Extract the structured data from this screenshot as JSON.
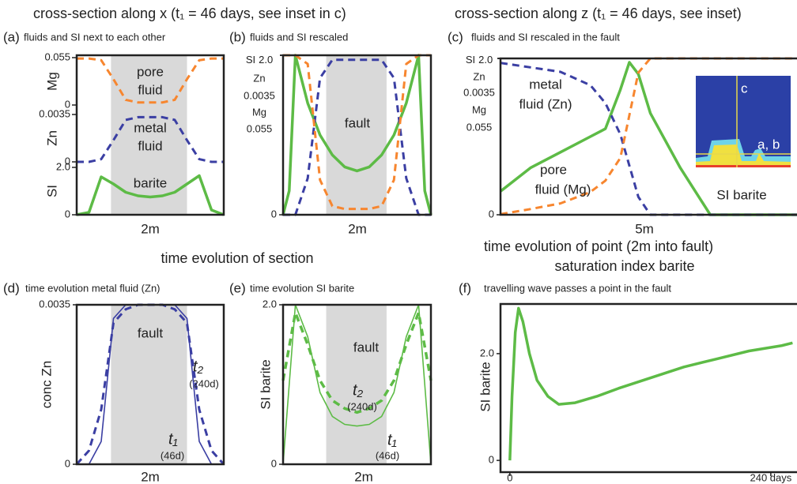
{
  "headings": {
    "top_x": "cross-section along x (t₁ = 46 days, see inset in c)",
    "top_z": "cross-section along z (t₁ = 46 days, see inset)",
    "section": "time evolution of section",
    "point": "time evolution of point (2m into fault)",
    "point_sub": "saturation index barite"
  },
  "chart_data": [
    {
      "type": "line",
      "panel": "(a)",
      "title": "fluids and SI next to each other",
      "xlabel": "2m",
      "xlim": [
        0,
        12
      ],
      "x": [
        0,
        1,
        2,
        3,
        4,
        5,
        6,
        7,
        8,
        9,
        10,
        11,
        12
      ],
      "fault": [
        2.8,
        9.0
      ],
      "bands": [
        {
          "ylabel": "Mg",
          "ylim": [
            0,
            0.055
          ],
          "yticks": [
            0,
            0.055
          ]
        },
        {
          "ylabel": "Zn",
          "ylim": [
            0,
            0.0035
          ],
          "yticks": [
            0,
            0.0035
          ]
        },
        {
          "ylabel": "SI",
          "ylim": [
            0,
            2
          ],
          "yticks": [
            0,
            {
              "value": 2,
              "label": "2.0"
            }
          ]
        }
      ],
      "series": [
        {
          "annotation": [
            "pore",
            "fluid"
          ],
          "band": 0,
          "color": "#f7862f",
          "style": "dashed",
          "linewidth": 3,
          "values": [
            0.054,
            0.054,
            0.052,
            0.03,
            0.006,
            0.003,
            0.003,
            0.003,
            0.006,
            0.03,
            0.052,
            0.054,
            0.054
          ]
        },
        {
          "annotation": [
            "metal",
            "fluid"
          ],
          "band": 1,
          "color": "#3b3fa3",
          "style": "dashed",
          "linewidth": 3,
          "values": [
            0,
            0,
            0.0002,
            0.0016,
            0.0031,
            0.0033,
            0.0033,
            0.0033,
            0.0031,
            0.0016,
            0.0002,
            0,
            0
          ]
        },
        {
          "annotation": [
            "barite"
          ],
          "band": 2,
          "color": "#5dbb46",
          "style": "solid",
          "linewidth": 3.5,
          "values": [
            0,
            0.1,
            1.6,
            1.3,
            0.95,
            0.8,
            0.75,
            0.8,
            0.95,
            1.3,
            1.65,
            0.2,
            0
          ]
        }
      ]
    },
    {
      "type": "line",
      "panel": "(b)",
      "title": "fluids and SI rescaled",
      "xlabel": "2m",
      "fault_label": "fault",
      "xlim": [
        0,
        12
      ],
      "x": [
        0,
        0.5,
        1,
        2,
        3,
        4,
        5,
        6,
        7,
        8,
        9,
        10,
        11,
        11.5,
        12
      ],
      "fault": [
        3.5,
        8.4
      ],
      "yticks": [
        0
      ],
      "series": [
        {
          "name": "SI",
          "ylim": [
            0,
            2
          ],
          "yticks": [
            {
              "value": 2,
              "label": "2.0"
            }
          ],
          "color": "#5dbb46",
          "style": "solid",
          "linewidth": 3.5,
          "values": [
            0,
            0.3,
            2.0,
            1.4,
            1.0,
            0.75,
            0.6,
            0.55,
            0.6,
            0.75,
            1.0,
            1.4,
            2.0,
            0.3,
            0
          ]
        },
        {
          "name": "Zn",
          "ylim": [
            0,
            0.0035
          ],
          "yticks": [
            0.0035
          ],
          "color": "#3b3fa3",
          "style": "dashed",
          "linewidth": 3,
          "values": [
            0,
            0,
            0,
            0.0008,
            0.003,
            0.0034,
            0.0034,
            0.0034,
            0.0034,
            0.0034,
            0.003,
            0.0008,
            0,
            0,
            0
          ]
        },
        {
          "name": "Mg",
          "ylim": [
            0,
            0.055
          ],
          "yticks": [
            0.055
          ],
          "color": "#f7862f",
          "style": "dashed",
          "linewidth": 3,
          "values": [
            0.055,
            0.055,
            0.055,
            0.052,
            0.012,
            0.003,
            0.002,
            0.002,
            0.002,
            0.003,
            0.012,
            0.052,
            0.055,
            0.055,
            0.055
          ]
        }
      ]
    },
    {
      "type": "line",
      "panel": "(c)",
      "title": "fluids and SI rescaled in the fault",
      "xlabel": "5m",
      "xlim": [
        0,
        10
      ],
      "x": [
        0,
        1,
        2,
        3,
        3.5,
        4,
        4.3,
        4.6,
        5,
        6,
        7,
        8,
        9,
        10
      ],
      "yticks": [
        0
      ],
      "inset_labels": [
        "c",
        "a, b"
      ],
      "series": [
        {
          "name": "SI",
          "annotation": [
            "SI barite"
          ],
          "ylim": [
            0,
            2
          ],
          "yticks": [
            {
              "value": 2,
              "label": "2.0"
            }
          ],
          "color": "#5dbb46",
          "style": "solid",
          "linewidth": 3.5,
          "values": [
            0.3,
            0.6,
            0.8,
            1.0,
            1.1,
            1.6,
            1.95,
            1.8,
            1.3,
            0.6,
            0,
            0,
            0,
            0
          ]
        },
        {
          "name": "Zn",
          "annotation": [
            "metal",
            "fluid (Zn)"
          ],
          "ylim": [
            0,
            0.0035
          ],
          "yticks": [
            0.0035
          ],
          "color": "#3b3fa3",
          "style": "dashed",
          "linewidth": 3,
          "values": [
            0.0034,
            0.0033,
            0.0032,
            0.0029,
            0.0025,
            0.0018,
            0.0011,
            0.0004,
            0,
            0,
            0,
            0,
            0,
            0
          ]
        },
        {
          "name": "Mg",
          "annotation": [
            "pore",
            "fluid (Mg)"
          ],
          "ylim": [
            0,
            0.055
          ],
          "yticks": [
            0.055
          ],
          "color": "#f7862f",
          "style": "dashed",
          "linewidth": 3,
          "values": [
            0.0002,
            0.002,
            0.004,
            0.008,
            0.012,
            0.02,
            0.035,
            0.05,
            0.055,
            0.055,
            0.055,
            0.055,
            0.055,
            0.055
          ]
        }
      ]
    },
    {
      "type": "line",
      "panel": "(d)",
      "title": "time evolution metal fluid (Zn)",
      "xlabel": "2m",
      "ylabel": "conc Zn",
      "fault_label": "fault",
      "xlim": [
        0,
        12
      ],
      "x": [
        0,
        1,
        2,
        3,
        4,
        5,
        6,
        7,
        8,
        9,
        10,
        11,
        12
      ],
      "fault": [
        2.8,
        9.0
      ],
      "ylim": [
        0,
        0.0035
      ],
      "yticks": [
        0,
        0.0035
      ],
      "series": [
        {
          "name": "t₂",
          "when": "(240d)",
          "color": "#3b3fa3",
          "style": "dashed",
          "linewidth": 3,
          "values": [
            0,
            0.0003,
            0.0012,
            0.0031,
            0.0034,
            0.0035,
            0.0035,
            0.0035,
            0.0034,
            0.0031,
            0.0012,
            0.0003,
            0
          ]
        },
        {
          "name": "t₁",
          "when": "(46d)",
          "color": "#3b3fa3",
          "style": "solid",
          "linewidth": 1.6,
          "values": [
            0,
            0,
            0.0005,
            0.0032,
            0.0035,
            0.0035,
            0.0035,
            0.0035,
            0.0035,
            0.0032,
            0.0005,
            0,
            0
          ]
        }
      ]
    },
    {
      "type": "line",
      "panel": "(e)",
      "title": "time evolution SI barite",
      "xlabel": "2m",
      "ylabel": "SI barite",
      "fault_label": "fault",
      "xlim": [
        0,
        12
      ],
      "x": [
        0,
        1,
        2,
        3,
        4,
        5,
        6,
        7,
        8,
        9,
        10,
        11,
        12
      ],
      "fault": [
        3.5,
        8.4
      ],
      "ylim": [
        0,
        2
      ],
      "yticks": [
        0,
        {
          "value": 2,
          "label": "2.0"
        }
      ],
      "series": [
        {
          "name": "t₂",
          "when": "(240d)",
          "color": "#5dbb46",
          "style": "dashed",
          "linewidth": 3.5,
          "values": [
            1.05,
            1.9,
            1.5,
            1.05,
            0.8,
            0.7,
            0.65,
            0.7,
            0.8,
            1.05,
            1.5,
            1.9,
            1.05
          ]
        },
        {
          "name": "t₁",
          "when": "(46d)",
          "color": "#5dbb46",
          "style": "solid",
          "linewidth": 1.6,
          "values": [
            0,
            2.0,
            1.6,
            0.9,
            0.6,
            0.5,
            0.48,
            0.5,
            0.6,
            0.9,
            1.6,
            2.0,
            0
          ]
        }
      ]
    },
    {
      "type": "line",
      "panel": "(f)",
      "title": "travelling wave passes a point in the fault",
      "ylabel": "SI barite",
      "xlim": [
        -8.6,
        267
      ],
      "xticks": [
        0,
        {
          "value": 240,
          "label": "240 days"
        }
      ],
      "ylim": [
        -0.22,
        2.93
      ],
      "yticks": [
        0,
        {
          "value": 2,
          "label": "2.0"
        }
      ],
      "x": [
        0,
        2,
        5,
        8,
        12,
        18,
        25,
        35,
        45,
        60,
        80,
        100,
        130,
        160,
        190,
        220,
        250,
        260
      ],
      "series": [
        {
          "color": "#5dbb46",
          "style": "solid",
          "linewidth": 3.5,
          "values": [
            0,
            1.2,
            2.4,
            2.85,
            2.6,
            2.0,
            1.5,
            1.2,
            1.05,
            1.08,
            1.2,
            1.35,
            1.55,
            1.75,
            1.9,
            2.05,
            2.15,
            2.2
          ]
        }
      ]
    }
  ]
}
